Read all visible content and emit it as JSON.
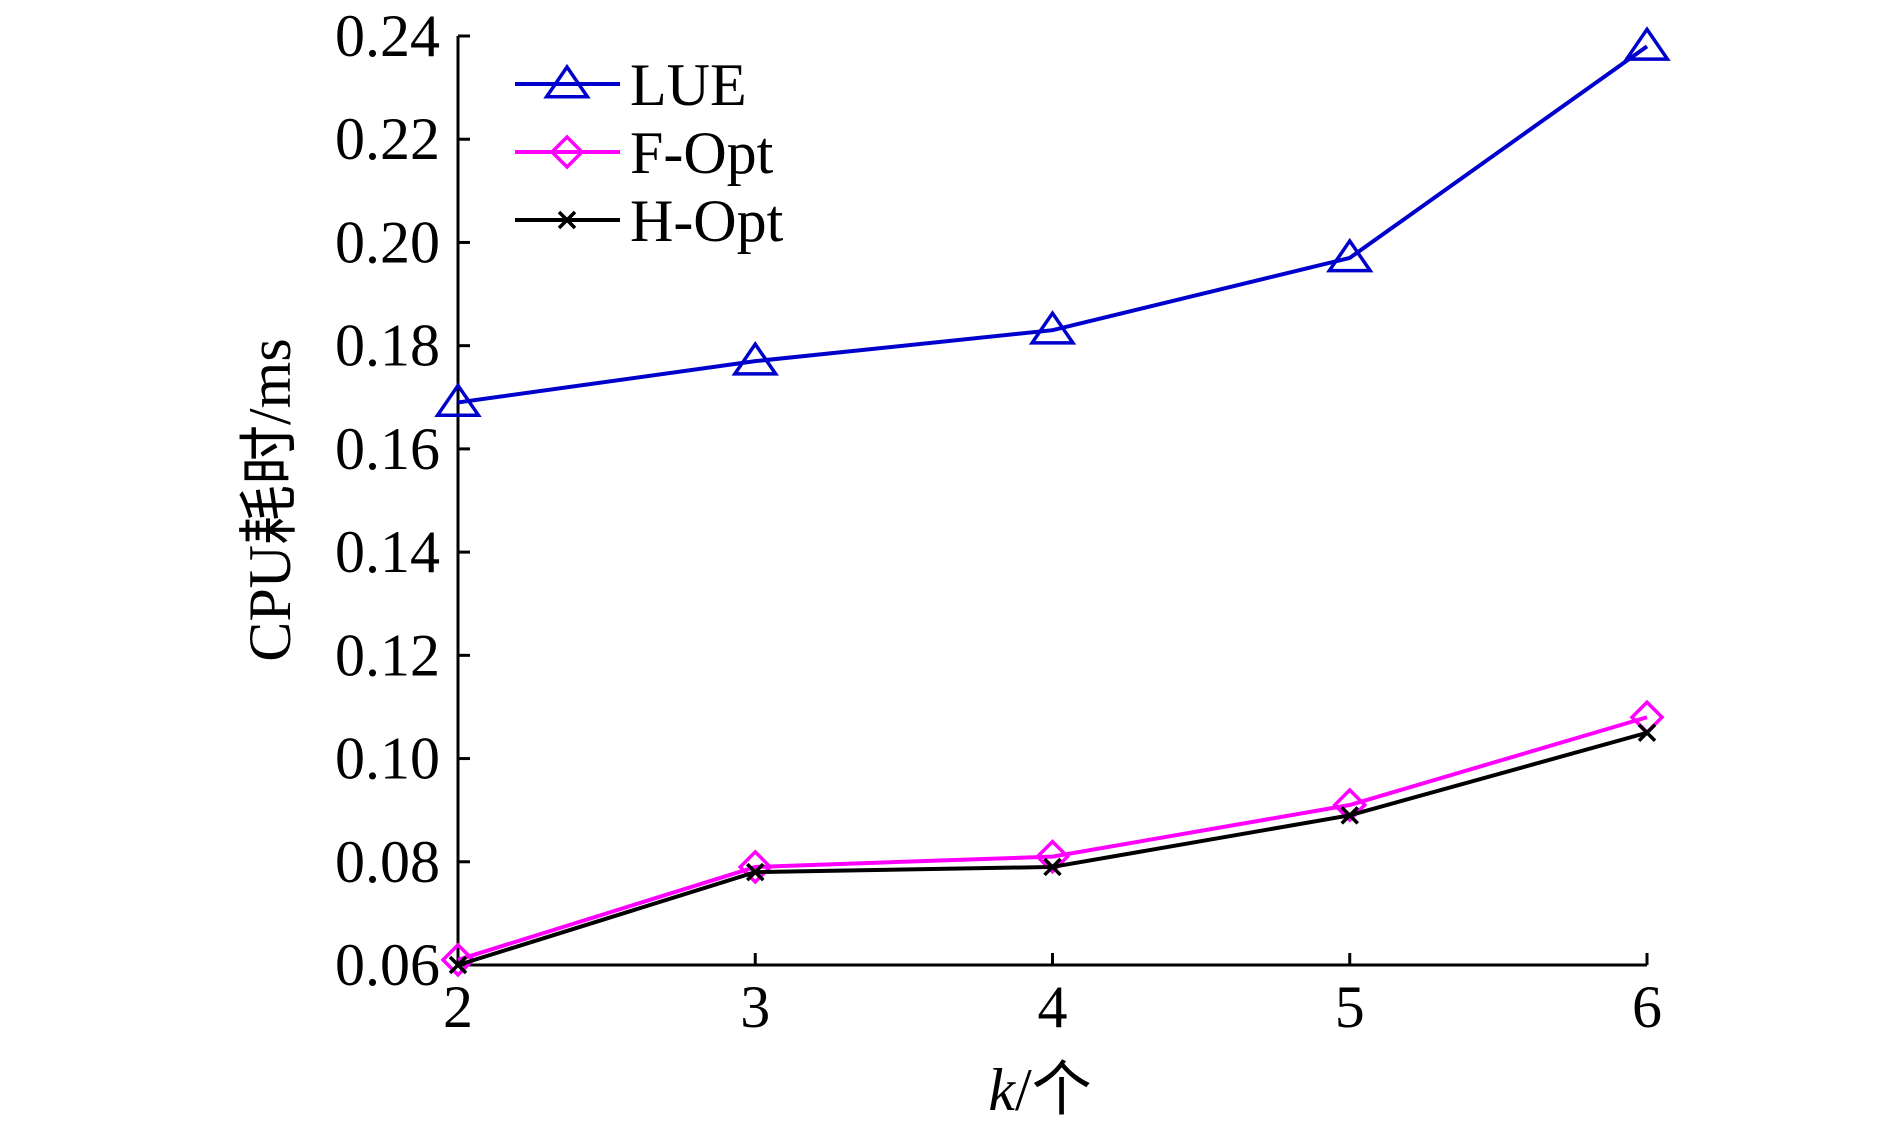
{
  "chart_data": {
    "type": "line",
    "title": "",
    "xlabel_var": "k",
    "xlabel_unit": "/个",
    "ylabel": "CPU耗时/ms",
    "x": [
      2,
      3,
      4,
      5,
      6
    ],
    "xlim": [
      2,
      6
    ],
    "ylim": [
      0.06,
      0.24
    ],
    "xticks": [
      "2",
      "3",
      "4",
      "5",
      "6"
    ],
    "yticks": [
      "0.06",
      "0.08",
      "0.10",
      "0.12",
      "0.14",
      "0.16",
      "0.18",
      "0.20",
      "0.22",
      "0.24"
    ],
    "grid": false,
    "legend_position": "top-left",
    "series": [
      {
        "name": "LUE",
        "values": [
          0.169,
          0.177,
          0.183,
          0.197,
          0.238
        ],
        "color": "#0000CC",
        "marker": "triangle"
      },
      {
        "name": "F-Opt",
        "values": [
          0.061,
          0.079,
          0.081,
          0.091,
          0.108
        ],
        "color": "#FF00FF",
        "marker": "diamond"
      },
      {
        "name": "H-Opt",
        "values": [
          0.06,
          0.078,
          0.079,
          0.089,
          0.105
        ],
        "color": "#000000",
        "marker": "x"
      }
    ]
  }
}
